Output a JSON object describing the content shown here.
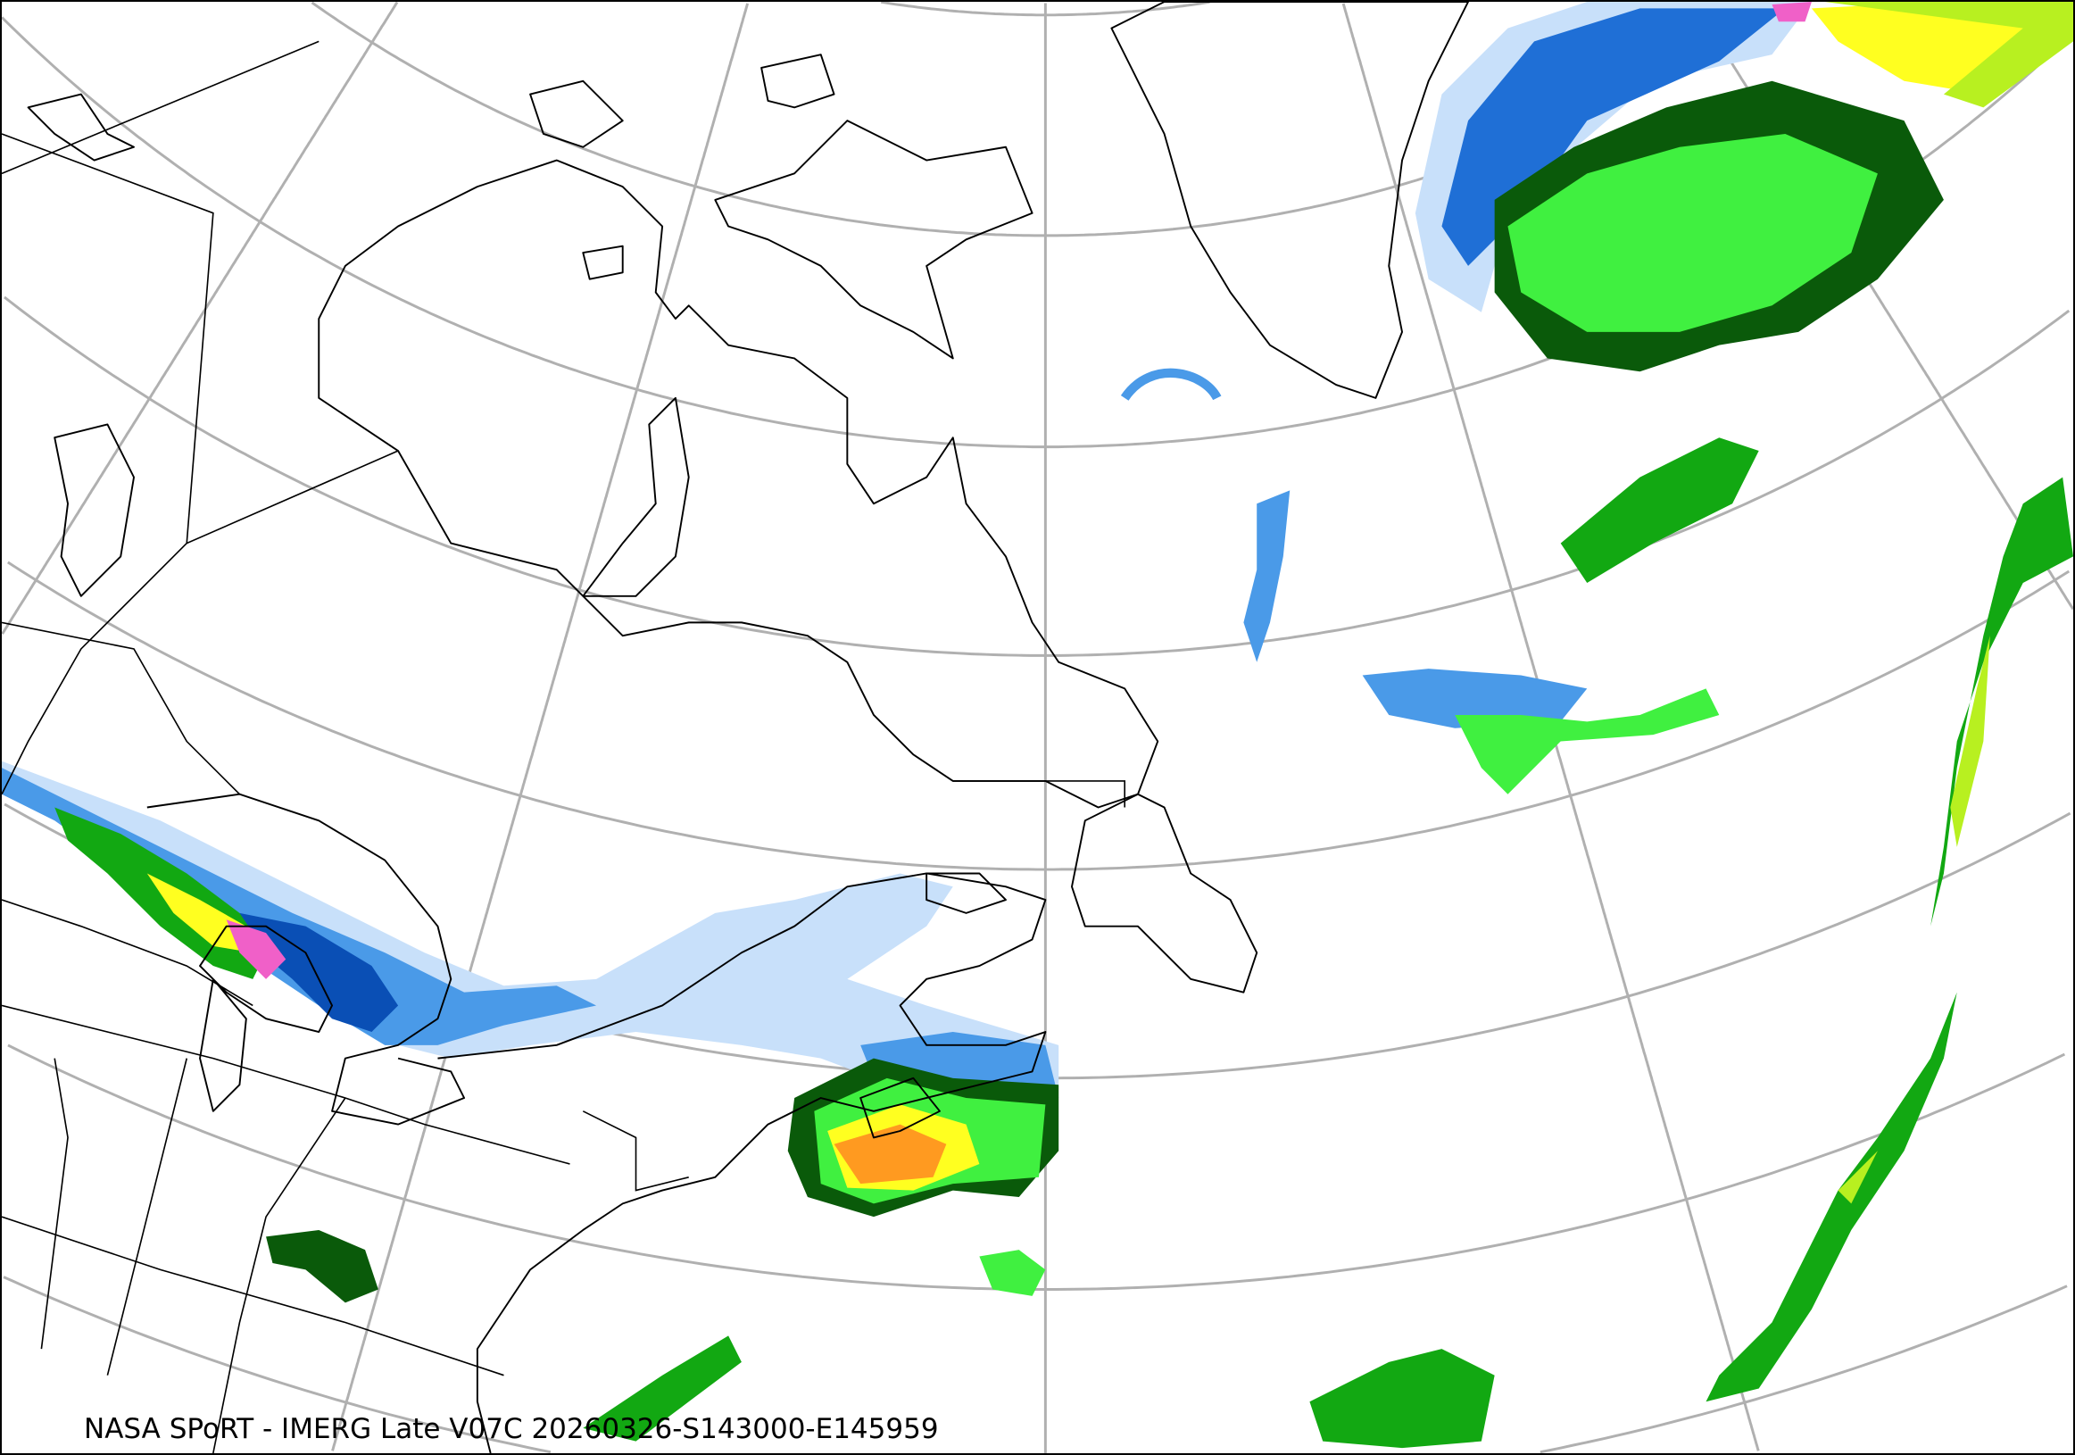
{
  "caption": "NASA SPoRT - IMERG Late V07C 20260326-S143000-E145959",
  "map": {
    "projection": "conic (North Atlantic / eastern Canada)",
    "graticule": true,
    "coastlines": true,
    "borders": true
  },
  "precip_colors": {
    "light_blue": "#c8e0fa",
    "mid_blue": "#4a9ae8",
    "blue": "#1f6fd6",
    "dark_blue": "#0a4fb5",
    "pink": "#f060c8",
    "dark_green": "#0a5a0a",
    "green": "#12a812",
    "bright_green": "#40f040",
    "yellow_green": "#b8f020",
    "yellow": "#ffff20",
    "orange": "#ff9a20",
    "graticule": "#b0b0b0"
  }
}
